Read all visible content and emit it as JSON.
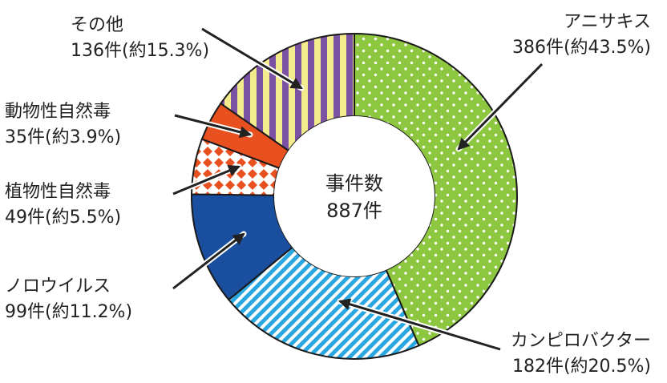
{
  "chart_data": {
    "type": "pie",
    "center_label": "事件数",
    "center_value": "887件",
    "total": 887,
    "slices": [
      {
        "name": "アニサキス",
        "label": "386件(約43.5%)",
        "count": 386,
        "percent": 43.5,
        "color": "#8dc63f",
        "pattern": "dots"
      },
      {
        "name": "カンピロバクター",
        "label": "182件(約20.5%)",
        "count": 182,
        "percent": 20.5,
        "color": "#2aa7e1",
        "pattern": "diagonal-stripes"
      },
      {
        "name": "ノロウイルス",
        "label": "99件(約11.2%)",
        "count": 99,
        "percent": 11.2,
        "color": "#1a4fa0",
        "pattern": "solid"
      },
      {
        "name": "植物性自然毒",
        "label": "49件(約5.5%)",
        "count": 49,
        "percent": 5.5,
        "color": "#e8501f",
        "pattern": "diamonds"
      },
      {
        "name": "動物性自然毒",
        "label": "35件(約3.9%)",
        "count": 35,
        "percent": 3.9,
        "color": "#e8501f",
        "pattern": "solid"
      },
      {
        "name": "その他",
        "label": "136件(約15.3%)",
        "count": 136,
        "percent": 15.3,
        "color": "#7b52a3",
        "pattern": "vertical-stripes"
      }
    ]
  }
}
